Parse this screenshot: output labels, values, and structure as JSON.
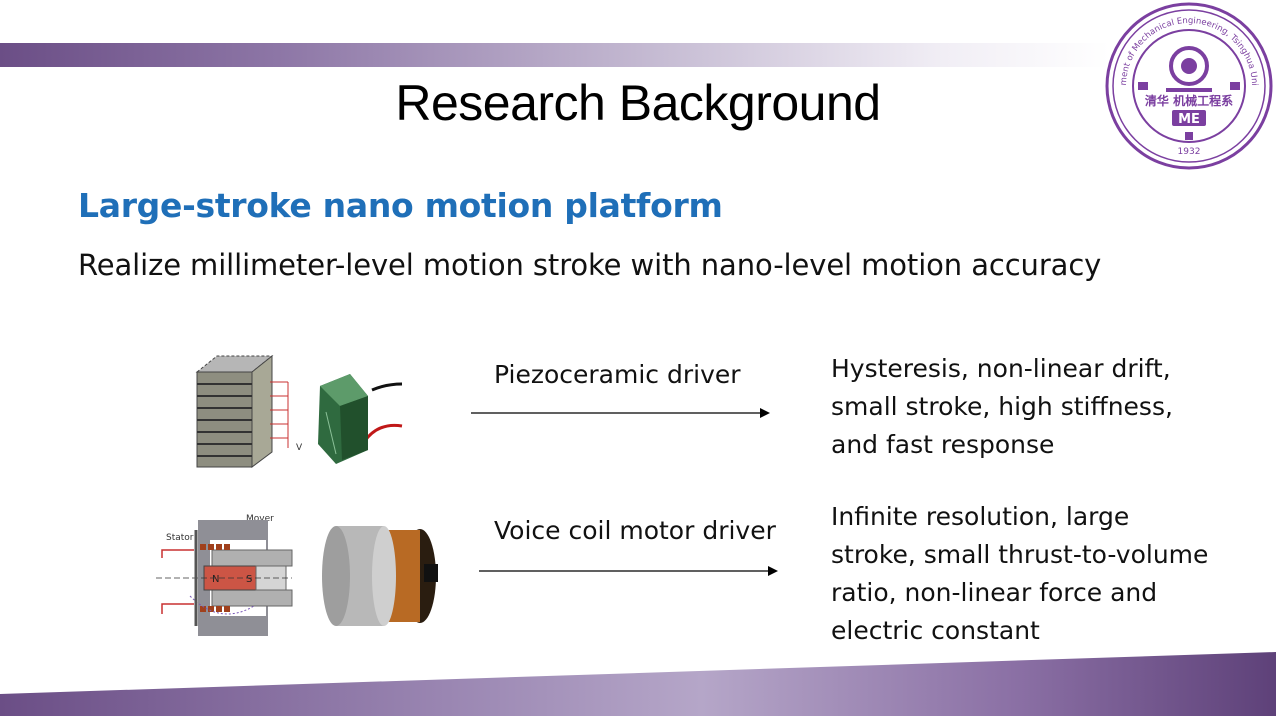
{
  "slide": {
    "title": "Research Background",
    "subtitle": "Large-stroke nano motion platform",
    "description": "Realize millimeter-level motion stroke with nano-level motion accuracy"
  },
  "logo": {
    "ring_text": "Department of Mechanical Engineering, Tsinghua University",
    "chinese": "清华 机械工程系",
    "abbr": "ME",
    "year": "1932"
  },
  "rows": [
    {
      "driver": "Piezoceramic driver",
      "result_lines": [
        "Hysteresis, non-linear drift,",
        "small stroke, high stiffness,",
        "and fast response"
      ],
      "diagram_labels": {
        "voltage": "V"
      }
    },
    {
      "driver": "Voice coil motor driver",
      "result_lines": [
        "Infinite resolution, large",
        "stroke, small thrust-to-volume",
        "ratio, non-linear force and",
        "electric constant"
      ],
      "diagram_labels": {
        "stator": "Stator",
        "mover": "Mover",
        "north": "N",
        "south": "S"
      }
    }
  ],
  "colors": {
    "title": "#000000",
    "subtitle": "#1f6fb8",
    "band": "#6b4e86",
    "logo": "#7b3fa0"
  }
}
